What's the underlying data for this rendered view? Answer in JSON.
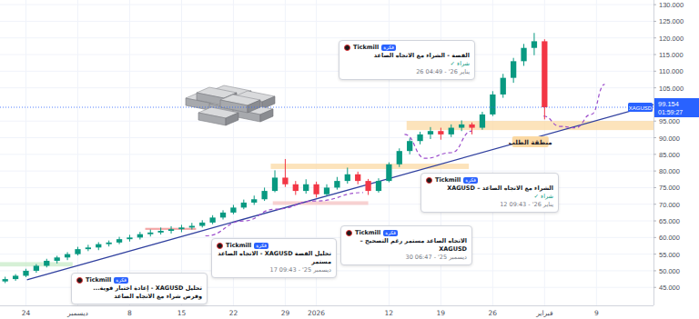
{
  "chart_data": {
    "type": "candlestick",
    "categories": [
      null,
      null,
      "24",
      null,
      null,
      null,
      null,
      "ديسمبر",
      null,
      null,
      null,
      null,
      "8",
      null,
      null,
      null,
      null,
      "15",
      null,
      null,
      null,
      null,
      "22",
      null,
      null,
      null,
      null,
      "29",
      null,
      null,
      "2026",
      null,
      null,
      null,
      null,
      null,
      null,
      "12",
      null,
      null,
      null,
      null,
      "19",
      null,
      null,
      null,
      null,
      "26",
      null,
      null,
      null,
      null,
      "فبراير",
      null,
      null,
      null,
      null,
      "9",
      null,
      null,
      null,
      null,
      null
    ],
    "series": [
      {
        "name": "XAGUSD",
        "open": [
          46.8,
          47.5,
          48.5,
          50,
          51.5,
          53,
          54,
          55,
          56.5,
          57,
          58,
          58.5,
          59.5,
          60,
          61,
          61.5,
          62,
          62.5,
          63,
          63.5,
          64.5,
          66,
          67.5,
          69,
          70.5,
          71.5,
          74,
          78,
          76,
          74,
          76,
          73,
          75,
          77,
          79,
          77,
          74,
          77,
          82,
          86,
          89,
          91,
          92,
          91,
          93,
          94,
          93,
          97,
          103,
          108,
          113,
          117,
          119,
          null,
          null,
          null,
          null,
          null,
          null,
          null,
          null,
          null,
          null
        ],
        "high": [
          48.2,
          49,
          50.6,
          52,
          53.6,
          54.5,
          55.6,
          57.2,
          57.8,
          58.6,
          59.1,
          60.2,
          60.8,
          61.7,
          62.4,
          63,
          63.4,
          63.8,
          64.4,
          65.2,
          66.7,
          68.2,
          69.8,
          71.4,
          72.6,
          75,
          80.2,
          83.6,
          77,
          77.5,
          76.8,
          76,
          78.2,
          81,
          79.8,
          77.6,
          77.8,
          82.6,
          86.8,
          89.8,
          91.8,
          93.2,
          93,
          94,
          95.2,
          94.6,
          97.8,
          104,
          109.2,
          114,
          118.2,
          121.5,
          119.6,
          null,
          null,
          null,
          null,
          null,
          null,
          null,
          null,
          null,
          null
        ],
        "low": [
          46.3,
          47,
          48.1,
          49.4,
          51,
          52.2,
          53.2,
          54.6,
          55.9,
          56.2,
          57.3,
          58,
          58.8,
          59.4,
          60.3,
          60.9,
          61.2,
          61.6,
          62.4,
          63,
          64,
          65.4,
          67,
          68.5,
          69.8,
          71,
          73.6,
          75.2,
          72.8,
          73.2,
          72,
          72.5,
          74.4,
          76.2,
          76,
          72.8,
          73.5,
          76.6,
          81.2,
          85,
          88,
          89.6,
          89.4,
          90.2,
          92,
          91,
          92.4,
          96.5,
          102,
          106.5,
          111.6,
          114.8,
          95.5,
          null,
          null,
          null,
          null,
          null,
          null,
          null,
          null,
          null,
          null
        ],
        "close": [
          47.5,
          48.5,
          50,
          51.5,
          53,
          54,
          55,
          56.5,
          57,
          58,
          58.5,
          59.5,
          60,
          61,
          61.5,
          62,
          62.5,
          63,
          63.5,
          64.5,
          66,
          67.5,
          69,
          70.5,
          71.5,
          74,
          78,
          76,
          74,
          76,
          73,
          75,
          77,
          79,
          77,
          74,
          77,
          82,
          86,
          89,
          91,
          92,
          91,
          93,
          94,
          93,
          97,
          103,
          108,
          113,
          117,
          119,
          99.154,
          null,
          null,
          null,
          null,
          null,
          null,
          null,
          null,
          null,
          null
        ]
      }
    ],
    "ylim": [
      39.6,
      131.4
    ],
    "yticks": [
      {
        "value": 45,
        "label": "45.000"
      },
      {
        "value": 50,
        "label": "50.000"
      },
      {
        "value": 55,
        "label": "55.000"
      },
      {
        "value": 60,
        "label": "60.000"
      },
      {
        "value": 65,
        "label": "65.000"
      },
      {
        "value": 70,
        "label": "70.000"
      },
      {
        "value": 75,
        "label": "75.000"
      },
      {
        "value": 80,
        "label": "80.000"
      },
      {
        "value": 85,
        "label": "85.000"
      },
      {
        "value": 90,
        "label": "90.000"
      },
      {
        "value": 95,
        "label": "95.000"
      },
      {
        "value": 105,
        "label": "105.000"
      },
      {
        "value": 110,
        "label": "110.000"
      },
      {
        "value": 115,
        "label": "115.000"
      },
      {
        "value": 120,
        "label": "120.000"
      },
      {
        "value": 125,
        "label": "125.000"
      },
      {
        "value": 130,
        "label": "130.000"
      }
    ],
    "grid": true,
    "countdown": "01:59:27",
    "trend_line": {
      "x": [
        2.1,
        62.5
      ],
      "values": [
        47.3,
        99.96
      ],
      "color": "#2f3f9e",
      "line_style": "solid"
    },
    "zones": [
      {
        "x0": 38.7,
        "x1": 62.5,
        "y0": 92.3,
        "y1": 95.05,
        "color": "#fbd9a4",
        "label": "منطقة الطلب"
      },
      {
        "x0": 25.6,
        "x1": 44.7,
        "y0": 80.6,
        "y1": 82.2,
        "color": "#fbd9a4"
      },
      {
        "x0": -0.5,
        "x1": 6.5,
        "y0": 51.3,
        "y1": 52.6,
        "color": "#c8ebc8"
      },
      {
        "x0": 13.5,
        "x1": 18.4,
        "y0": 62.3,
        "y1": 62.9,
        "color": "#f08a8a"
      },
      {
        "x0": 25.8,
        "x1": 35,
        "y0": 69.8,
        "y1": 70.9,
        "color": "#f6c1c1"
      }
    ],
    "projections": [
      {
        "x": [
          51.9,
          53.5,
          55,
          56.5,
          57.8
        ],
        "values": [
          96.5,
          93.4,
          93,
          97,
          106
        ],
        "color": "#9c4dcc",
        "line_style": "dashed"
      },
      {
        "x": [
          38.5,
          40.5,
          43,
          45
        ],
        "values": [
          91,
          83.8,
          85.5,
          92
        ],
        "color": "#9c4dcc",
        "line_style": "dashed"
      },
      {
        "x": [
          19.3,
          23,
          26,
          30,
          34.5
        ],
        "values": [
          60.5,
          65,
          68.5,
          71,
          73.5
        ],
        "color": "#9c4dcc",
        "line_style": "dashed"
      }
    ],
    "ideas": [
      {
        "author": "Tickmill",
        "badge": "فكرة",
        "title": "الفضة - الشراء مع الاتجاه الصاعد",
        "signal": "شراء ✓",
        "date": "26 04:49 - '26 يناير"
      },
      {
        "author": "Tickmill",
        "badge": "فكرة",
        "title": "الشراء مع الاتجاه الصاعد – XAGUSD",
        "signal": "شراء ✓",
        "date": "12 09:43 - '26 يناير"
      },
      {
        "author": "Tickmill",
        "badge": "فكرة",
        "title": "الاتجاه الصاعد مستمر رغم التصحيح – XAGUSD",
        "date": "30 06:47 - '25 ديسمبر"
      },
      {
        "author": "Tickmill",
        "badge": "فكرة",
        "title": "تحليل الفضة XAGUSD - الاتجاه الصاعد مستمر",
        "date": "17 09:43 - '25 ديسمبر"
      },
      {
        "author": "Tickmill",
        "badge": "فكرة",
        "title": "تحليل XAGUSD - إعادة اختبار قوية... وفرص شراء مع الاتجاه الصاعد"
      }
    ]
  }
}
